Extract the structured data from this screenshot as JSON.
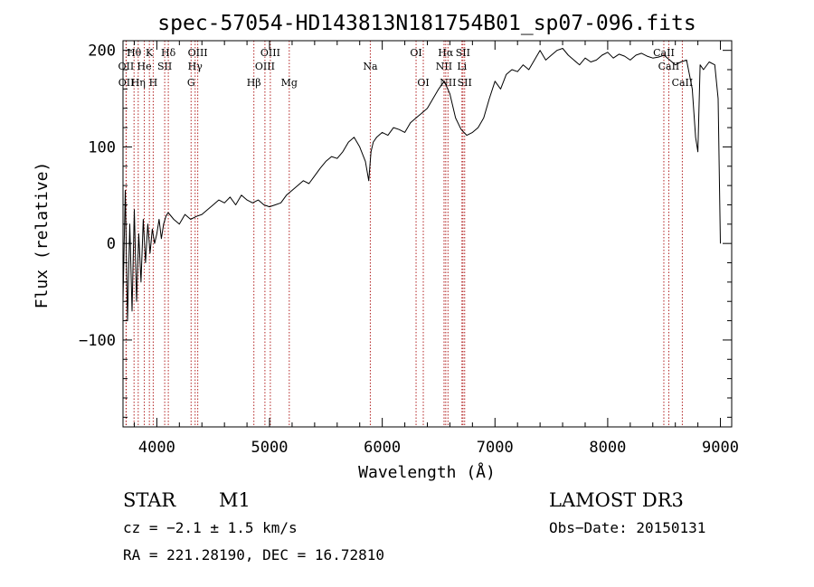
{
  "chart_data": {
    "type": "line",
    "title": "spec-57054-HD143813N181754B01_sp07-096.fits",
    "xlabel": "Wavelength (Å)",
    "ylabel": "Flux (relative)",
    "xlim": [
      3700,
      9100
    ],
    "ylim": [
      -190,
      210
    ],
    "xticks": [
      4000,
      5000,
      6000,
      7000,
      8000,
      9000
    ],
    "yticks": [
      -100,
      0,
      100,
      200
    ],
    "grid": false,
    "series": [
      {
        "x": [
          3700,
          3720,
          3740,
          3760,
          3780,
          3800,
          3820,
          3840,
          3860,
          3880,
          3900,
          3920,
          3940,
          3960,
          3980,
          4000,
          4020,
          4040,
          4060,
          4080,
          4100,
          4150,
          4200,
          4250,
          4300,
          4350,
          4400,
          4450,
          4500,
          4550,
          4600,
          4650,
          4700,
          4750,
          4800,
          4850,
          4900,
          4950,
          5000,
          5050,
          5100,
          5150,
          5200,
          5250,
          5300,
          5350,
          5400,
          5450,
          5500,
          5550,
          5600,
          5650,
          5700,
          5750,
          5800,
          5850,
          5880,
          5900,
          5920,
          5950,
          6000,
          6050,
          6100,
          6150,
          6200,
          6250,
          6300,
          6350,
          6400,
          6450,
          6500,
          6550,
          6600,
          6650,
          6700,
          6750,
          6800,
          6850,
          6900,
          6950,
          7000,
          7050,
          7100,
          7150,
          7200,
          7250,
          7300,
          7350,
          7400,
          7450,
          7500,
          7550,
          7600,
          7650,
          7700,
          7750,
          7800,
          7850,
          7900,
          7950,
          8000,
          8050,
          8100,
          8150,
          8200,
          8250,
          8300,
          8350,
          8400,
          8450,
          8500,
          8550,
          8600,
          8650,
          8700,
          8750,
          8780,
          8800,
          8820,
          8850,
          8900,
          8950,
          8980,
          9000
        ],
        "values": [
          -60,
          55,
          -80,
          20,
          -70,
          35,
          -60,
          10,
          -40,
          25,
          -20,
          20,
          -10,
          15,
          0,
          10,
          25,
          5,
          20,
          28,
          32,
          25,
          20,
          30,
          25,
          28,
          30,
          35,
          40,
          45,
          42,
          48,
          40,
          50,
          45,
          42,
          45,
          40,
          38,
          40,
          42,
          50,
          55,
          60,
          65,
          62,
          70,
          78,
          85,
          90,
          88,
          95,
          105,
          110,
          100,
          85,
          65,
          95,
          105,
          110,
          115,
          112,
          120,
          118,
          115,
          125,
          130,
          135,
          140,
          150,
          160,
          168,
          155,
          130,
          118,
          112,
          115,
          120,
          130,
          150,
          168,
          160,
          175,
          180,
          178,
          185,
          180,
          190,
          200,
          190,
          195,
          200,
          202,
          195,
          190,
          185,
          192,
          188,
          190,
          195,
          198,
          192,
          196,
          194,
          190,
          195,
          197,
          194,
          192,
          193,
          195,
          190,
          185,
          188,
          190,
          160,
          110,
          95,
          185,
          180,
          188,
          185,
          150,
          0
        ]
      }
    ],
    "lines": [
      {
        "label": "Hθ",
        "x": 3798,
        "row": 1
      },
      {
        "label": "OII",
        "x": 3727,
        "row": 2
      },
      {
        "label": "OII",
        "x": 3729,
        "row": 3
      },
      {
        "label": "Hη",
        "x": 3835,
        "row": 3
      },
      {
        "label": "He",
        "x": 3889,
        "row": 2
      },
      {
        "label": "K",
        "x": 3934,
        "row": 1
      },
      {
        "label": "H",
        "x": 3968,
        "row": 3
      },
      {
        "label": "SII",
        "x": 4070,
        "row": 2
      },
      {
        "label": "Hδ",
        "x": 4102,
        "row": 1
      },
      {
        "label": "G",
        "x": 4304,
        "row": 3
      },
      {
        "label": "Hγ",
        "x": 4340,
        "row": 2
      },
      {
        "label": "OIII",
        "x": 4363,
        "row": 1
      },
      {
        "label": "Hβ",
        "x": 4861,
        "row": 3
      },
      {
        "label": "OIII",
        "x": 4959,
        "row": 2
      },
      {
        "label": "OIII",
        "x": 5007,
        "row": 1
      },
      {
        "label": "Mg",
        "x": 5175,
        "row": 3
      },
      {
        "label": "Na",
        "x": 5894,
        "row": 2
      },
      {
        "label": "OI",
        "x": 6300,
        "row": 1
      },
      {
        "label": "OI",
        "x": 6364,
        "row": 3
      },
      {
        "label": "NII",
        "x": 6548,
        "row": 2
      },
      {
        "label": "Hα",
        "x": 6563,
        "row": 1
      },
      {
        "label": "NII",
        "x": 6583,
        "row": 3
      },
      {
        "label": "Li",
        "x": 6707,
        "row": 2
      },
      {
        "label": "SII",
        "x": 6716,
        "row": 1
      },
      {
        "label": "SII",
        "x": 6731,
        "row": 3
      },
      {
        "label": "CaII",
        "x": 8498,
        "row": 1
      },
      {
        "label": "CaII",
        "x": 8542,
        "row": 2
      },
      {
        "label": "CaII",
        "x": 8662,
        "row": 3
      }
    ]
  },
  "info": {
    "class": "STAR",
    "subclass": "M1",
    "survey": "LAMOST DR3",
    "cz": "cz = −2.1 ± 1.5 km/s",
    "obs_date": "Obs−Date: 20150131",
    "radec": "RA = 221.28190, DEC =  16.72810"
  },
  "colors": {
    "line_marker": "#b22222",
    "spectrum": "#000000"
  }
}
